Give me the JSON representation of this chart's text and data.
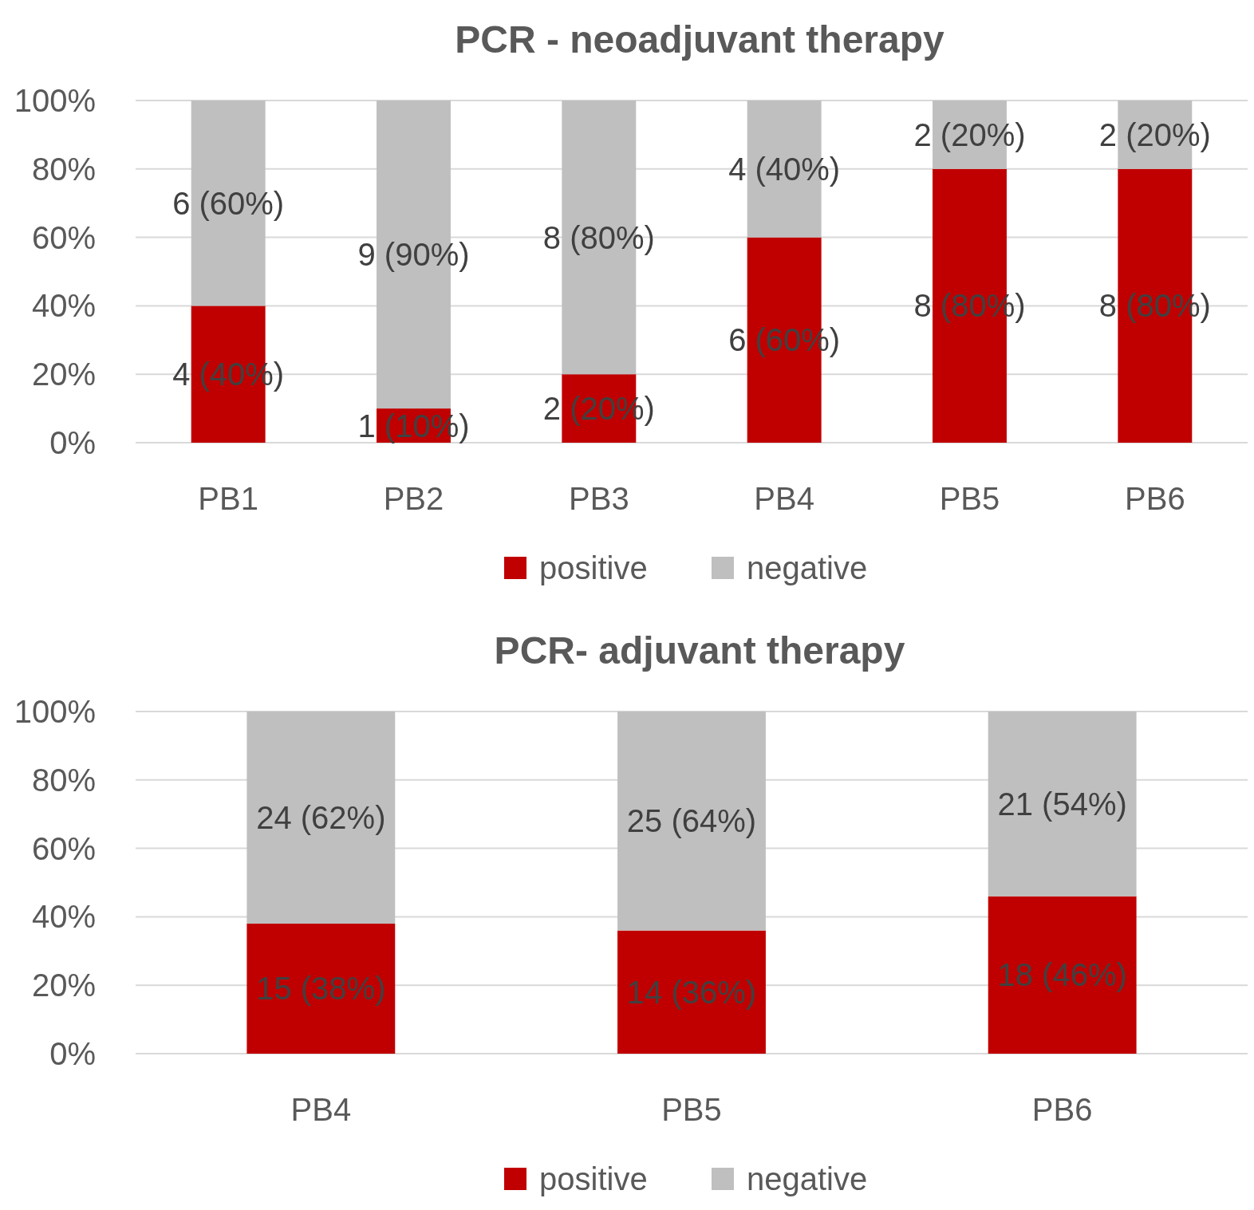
{
  "chart_data": [
    {
      "type": "bar",
      "title": "PCR - neoadjuvant therapy",
      "stacked": true,
      "categories": [
        "PB1",
        "PB2",
        "PB3",
        "PB4",
        "PB5",
        "PB6"
      ],
      "ylim": [
        0,
        100
      ],
      "yticks": [
        {
          "value": 0,
          "label": "0%"
        },
        {
          "value": 20,
          "label": "20%"
        },
        {
          "value": 40,
          "label": "40%"
        },
        {
          "value": 60,
          "label": "60%"
        },
        {
          "value": 80,
          "label": "80%"
        },
        {
          "value": 100,
          "label": "100%"
        }
      ],
      "grid": "y",
      "legend": "bottom",
      "series": [
        {
          "name": "positive",
          "color": "#c00000",
          "values": [
            40,
            10,
            20,
            60,
            80,
            80
          ],
          "value_labels": [
            "4 (40%)",
            "1 (10%)",
            "2 (20%)",
            "6 (60%)",
            "8 (80%)",
            "8 (80%)"
          ]
        },
        {
          "name": "negative",
          "color": "#bfbfbf",
          "values": [
            60,
            90,
            80,
            40,
            20,
            20
          ],
          "value_labels": [
            "6 (60%)",
            "9 (90%)",
            "8 (80%)",
            "4 (40%)",
            "2 (20%)",
            "2 (20%)"
          ]
        }
      ]
    },
    {
      "type": "bar",
      "title": "PCR- adjuvant therapy",
      "stacked": true,
      "categories": [
        "PB4",
        "PB5",
        "PB6"
      ],
      "ylim": [
        0,
        100
      ],
      "yticks": [
        {
          "value": 0,
          "label": "0%"
        },
        {
          "value": 20,
          "label": "20%"
        },
        {
          "value": 40,
          "label": "40%"
        },
        {
          "value": 60,
          "label": "60%"
        },
        {
          "value": 80,
          "label": "80%"
        },
        {
          "value": 100,
          "label": "100%"
        }
      ],
      "grid": "y",
      "legend": "bottom",
      "series": [
        {
          "name": "positive",
          "color": "#c00000",
          "values": [
            38,
            36,
            46
          ],
          "value_labels": [
            "15 (38%)",
            "14 (36%)",
            "18 (46%)"
          ]
        },
        {
          "name": "negative",
          "color": "#bfbfbf",
          "values": [
            62,
            64,
            54
          ],
          "value_labels": [
            "24 (62%)",
            "25 (64%)",
            "21 (54%)"
          ]
        }
      ]
    }
  ]
}
